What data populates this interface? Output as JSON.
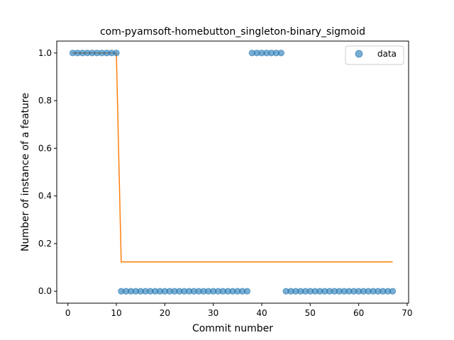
{
  "chart_data": {
    "type": "scatter",
    "title": "com-pyamsoft-homebutton_singleton-binary_sigmoid",
    "xlabel": "Commit number",
    "ylabel": "Number of instance of a feature",
    "xlim": [
      -2.3,
      70.3
    ],
    "ylim": [
      -0.05,
      1.05
    ],
    "xticks": [
      0,
      10,
      20,
      30,
      40,
      50,
      60,
      70
    ],
    "yticks": [
      0.0,
      0.2,
      0.4,
      0.6,
      0.8,
      1.0
    ],
    "xtick_labels": [
      "0",
      "10",
      "20",
      "30",
      "40",
      "50",
      "60",
      "70"
    ],
    "ytick_labels": [
      "0.0",
      "0.2",
      "0.4",
      "0.6",
      "0.8",
      "1.0"
    ],
    "legend": {
      "position": "top-right",
      "entries": [
        "data"
      ]
    },
    "series": [
      {
        "name": "data",
        "kind": "scatter",
        "color": "#1f77b4",
        "x": [
          1,
          2,
          3,
          4,
          5,
          6,
          7,
          8,
          9,
          10,
          11,
          12,
          13,
          14,
          15,
          16,
          17,
          18,
          19,
          20,
          21,
          22,
          23,
          24,
          25,
          26,
          27,
          28,
          29,
          30,
          31,
          32,
          33,
          34,
          35,
          36,
          37,
          38,
          39,
          40,
          41,
          42,
          43,
          44,
          45,
          46,
          47,
          48,
          49,
          50,
          51,
          52,
          53,
          54,
          55,
          56,
          57,
          58,
          59,
          60,
          61,
          62,
          63,
          64,
          65,
          66,
          67
        ],
        "y": [
          1,
          1,
          1,
          1,
          1,
          1,
          1,
          1,
          1,
          1,
          0,
          0,
          0,
          0,
          0,
          0,
          0,
          0,
          0,
          0,
          0,
          0,
          0,
          0,
          0,
          0,
          0,
          0,
          0,
          0,
          0,
          0,
          0,
          0,
          0,
          0,
          0,
          1,
          1,
          1,
          1,
          1,
          1,
          1,
          0,
          0,
          0,
          0,
          0,
          0,
          0,
          0,
          0,
          0,
          0,
          0,
          0,
          0,
          0,
          0,
          0,
          0,
          0,
          0,
          0,
          0,
          0
        ]
      },
      {
        "kind": "line",
        "color": "#ff7f0e",
        "x": [
          1,
          10,
          11,
          67
        ],
        "y": [
          1.0,
          1.0,
          0.123,
          0.123
        ]
      }
    ]
  }
}
